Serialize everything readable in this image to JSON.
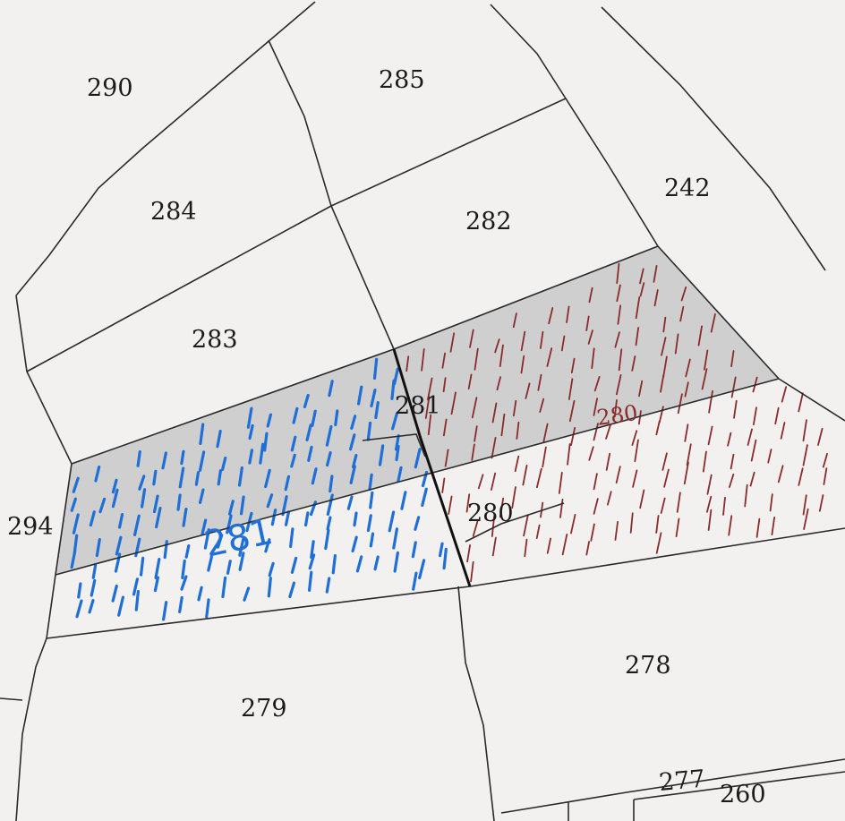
{
  "parcels": {
    "p290": "290",
    "p285": "285",
    "p284": "284",
    "p242": "242",
    "p282": "282",
    "p283": "283",
    "p281": "281",
    "p294": "294",
    "p280": "280",
    "p278": "278",
    "p279": "279",
    "p277": "277",
    "p260": "260"
  },
  "annotations": {
    "blue_parcel": "281",
    "red_parcel": "280"
  },
  "colors": {
    "paper": "#f2f1ef",
    "shaded": "#c9c9c9",
    "blue_hatch": "#1f6fd6",
    "red_hatch": "#8a2b2b"
  }
}
